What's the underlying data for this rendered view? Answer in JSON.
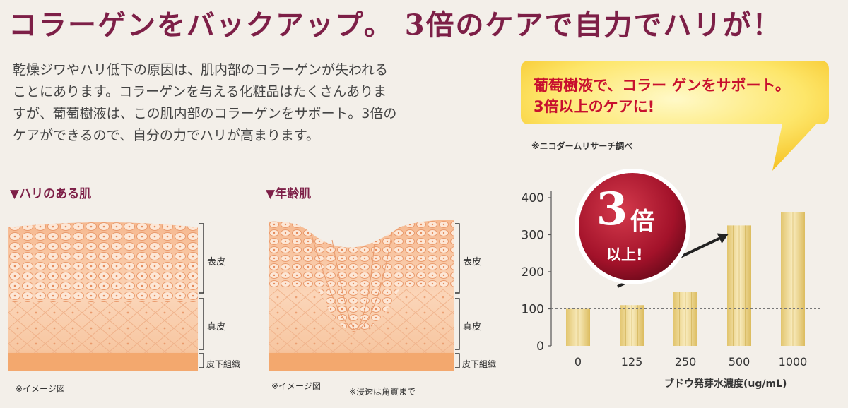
{
  "headline": "コラーゲンをバックアップ。 3倍のケアで自力でハリが！",
  "body_lines": [
    "乾燥ジワやハリ低下の原因は、肌内部のコラーゲンが失われる",
    "ことにあります。コラーゲンを与える化粧品はたくさんありま",
    "すが、葡萄樹液は、この肌内部のコラーゲンをサポート。3倍の",
    "ケアができるので、自分の力でハリが高まります。"
  ],
  "diagrams": [
    {
      "title": "▼ハリのある肌",
      "layers": [
        "表皮",
        "真皮",
        "皮下組織"
      ],
      "note": "※イメージ図"
    },
    {
      "title": "▼年齢肌",
      "layers": [
        "表皮",
        "真皮",
        "皮下組織"
      ],
      "note": "※イメージ図",
      "note2": "※浸透は角質まで"
    }
  ],
  "callout": {
    "line1": "葡萄樹液で、コラー ゲンをサポート。",
    "line2": "3倍以上のケアに!",
    "research_note": "※ニコダームリサーチ調べ"
  },
  "badge": {
    "big": "3",
    "kanji": "倍",
    "small": "以上!"
  },
  "colors": {
    "accent": "#7d1f47",
    "callout_text": "#c8102e",
    "bar": "#e8d28f",
    "badge": "#a3122a"
  },
  "chart_data": {
    "type": "bar",
    "categories": [
      "0",
      "125",
      "250",
      "500",
      "1000"
    ],
    "values": [
      100,
      110,
      145,
      325,
      360
    ],
    "xlabel": "ブドウ発芽水濃度(ug/mL)",
    "ylabel": "",
    "ylim": [
      0,
      400
    ],
    "yticks": [
      0,
      100,
      200,
      300,
      400
    ],
    "reference_line": 100,
    "grid": false
  }
}
